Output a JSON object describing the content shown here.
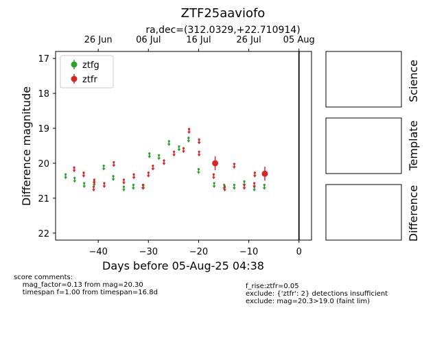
{
  "chart_data": {
    "type": "scatter",
    "title": "ZTF25aaviofo",
    "subtitle": "ra,dec=(312.0329,+22.710914)",
    "xlabel": "Days before 05-Aug-25 04:38",
    "ylabel": "Difference magnitude",
    "xlim": [
      -48.5,
      2.5
    ],
    "ylim": [
      22.2,
      16.8
    ],
    "y_inverted": true,
    "x_ticks": [
      -40,
      -30,
      -20,
      -10,
      0
    ],
    "x_tick_labels": [
      "−40",
      "−30",
      "−20",
      "−10",
      "0"
    ],
    "y_ticks": [
      17,
      18,
      19,
      20,
      21,
      22
    ],
    "y_tick_labels": [
      "17",
      "18",
      "19",
      "20",
      "21",
      "22"
    ],
    "top_axis_ticks": [
      -40,
      -30,
      -20,
      -10,
      0
    ],
    "top_axis_labels": [
      "26 Jun",
      "06 Jul",
      "16 Jul",
      "26 Jul",
      "05 Aug"
    ],
    "vertical_line_x": 0,
    "legend_position": "top-left",
    "grid": false,
    "series": [
      {
        "name": "ztfg",
        "color": "#2ca02c",
        "detections": [],
        "upper_limits": [
          [
            -46.5,
            20.35
          ],
          [
            -44.7,
            20.45
          ],
          [
            -42.8,
            20.6
          ],
          [
            -40.8,
            20.55
          ],
          [
            -38.9,
            20.1
          ],
          [
            -37.0,
            20.4
          ],
          [
            -34.9,
            20.7
          ],
          [
            -33.0,
            20.65
          ],
          [
            -31.0,
            20.65
          ],
          [
            -29.8,
            19.75
          ],
          [
            -27.9,
            19.8
          ],
          [
            -25.9,
            19.4
          ],
          [
            -23.9,
            19.55
          ],
          [
            -22.0,
            19.3
          ],
          [
            -20.0,
            20.2
          ],
          [
            -16.9,
            20.6
          ],
          [
            -14.9,
            20.65
          ],
          [
            -12.9,
            20.65
          ],
          [
            -10.9,
            20.55
          ],
          [
            -8.9,
            20.7
          ],
          [
            -6.9,
            20.65
          ]
        ]
      },
      {
        "name": "ztfr",
        "color": "#d62728",
        "detections": [
          {
            "x": -16.7,
            "y": 20.0,
            "err": 0.2
          },
          {
            "x": -6.8,
            "y": 20.3,
            "err": 0.2
          }
        ],
        "upper_limits": [
          [
            -44.8,
            20.15
          ],
          [
            -42.9,
            20.3
          ],
          [
            -40.9,
            20.7
          ],
          [
            -40.8,
            20.5
          ],
          [
            -38.8,
            20.6
          ],
          [
            -36.9,
            20.0
          ],
          [
            -34.9,
            20.5
          ],
          [
            -32.9,
            20.35
          ],
          [
            -31.1,
            20.65
          ],
          [
            -30.0,
            20.3
          ],
          [
            -29.1,
            20.1
          ],
          [
            -26.9,
            19.95
          ],
          [
            -24.9,
            19.7
          ],
          [
            -23.0,
            19.6
          ],
          [
            -21.9,
            19.05
          ],
          [
            -19.9,
            19.35
          ],
          [
            -19.9,
            19.7
          ],
          [
            -17.0,
            20.35
          ],
          [
            -14.8,
            20.7
          ],
          [
            -12.9,
            20.05
          ],
          [
            -10.9,
            20.65
          ],
          [
            -8.8,
            20.3
          ],
          [
            -8.9,
            20.6
          ]
        ]
      }
    ]
  },
  "panels": {
    "science": "Science",
    "template": "Template",
    "difference": "Difference"
  },
  "comments": {
    "left": "score comments:\n    mag_factor=0.13 from mag=20.30\n    timespan f=1.00 from timespan=16.8d",
    "right": "f_rise:ztfr=0.05\nexclude: {'ztfr': 2} detections insufficient\nexclude: mag=20.3>19.0 (faint lim)"
  }
}
